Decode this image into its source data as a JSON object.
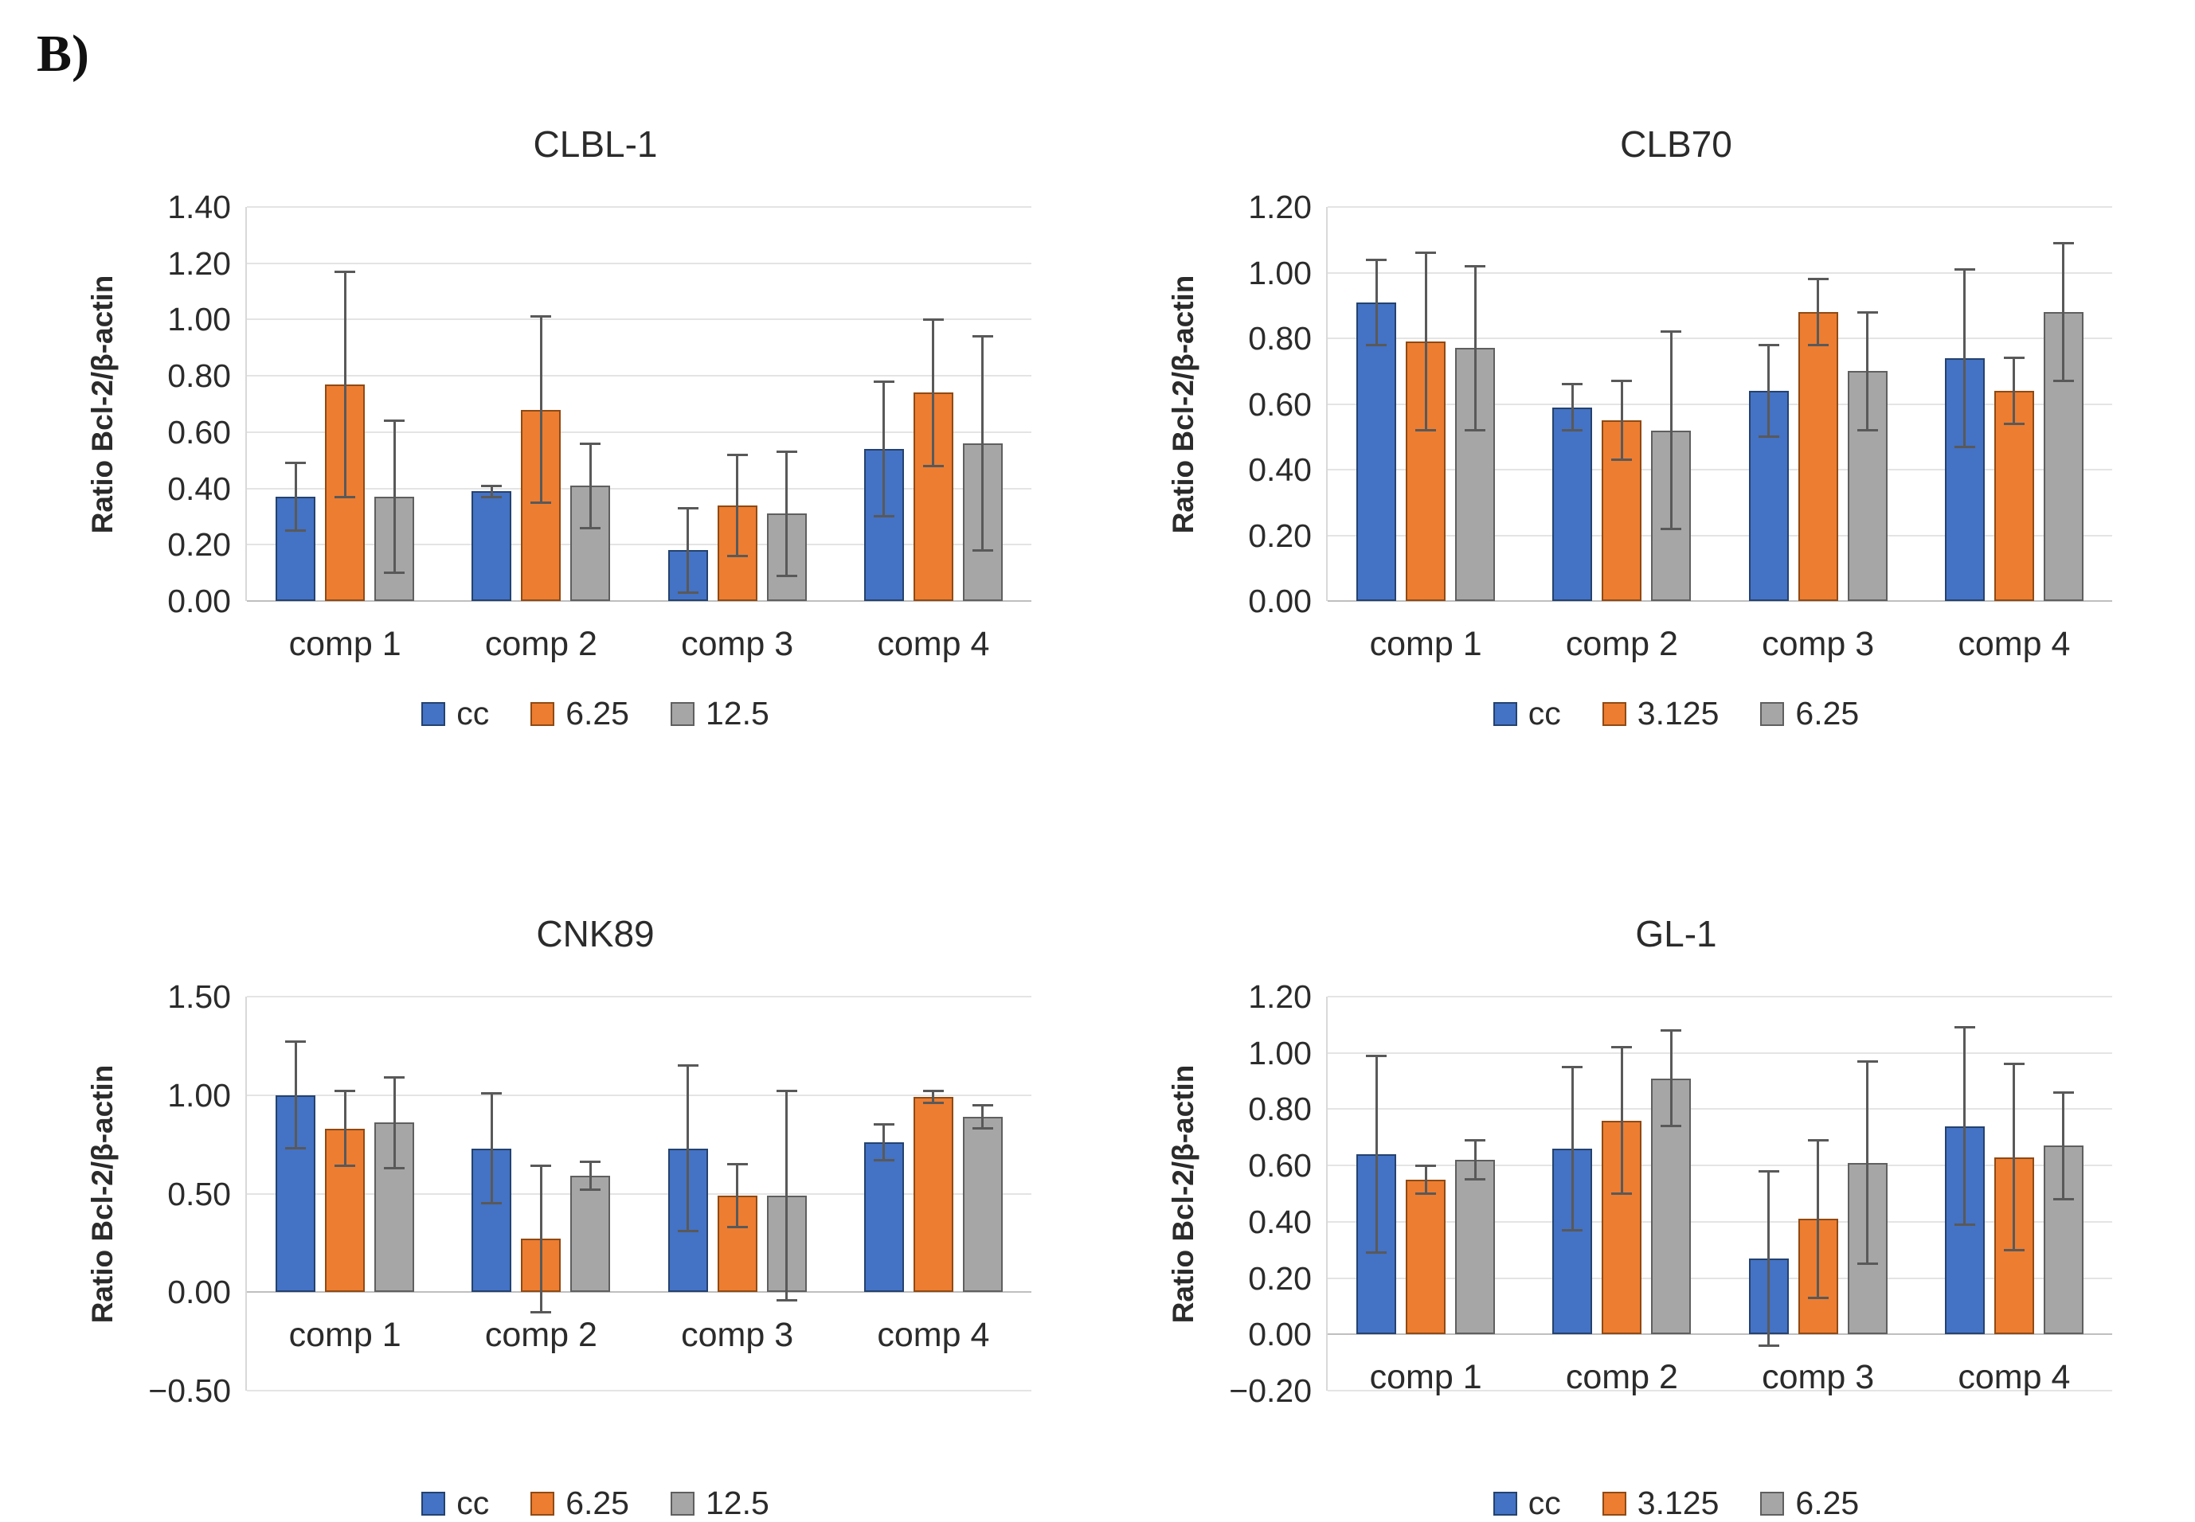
{
  "figure_label": "B)",
  "palette": {
    "series_fill": [
      "#4472C4",
      "#ED7D31",
      "#A6A6A6"
    ],
    "series_border": [
      "#24426E",
      "#8F4A14",
      "#5F5F5F"
    ],
    "error_bar": "#595959",
    "gridline": "#E4E4E4",
    "zero_line": "#BFBFBF",
    "axis_line": "#D9D9D9",
    "text": "#2b2b2b"
  },
  "chart_data": [
    {
      "type": "bar",
      "title": "CLBL-1",
      "ylabel": "Ratio Bcl-2/β-actin",
      "xlabel": "",
      "categories": [
        "comp 1",
        "comp 2",
        "comp 3",
        "comp 4"
      ],
      "series": [
        {
          "name": "cc",
          "values": [
            0.37,
            0.39,
            0.18,
            0.54
          ],
          "errors": [
            0.12,
            0.02,
            0.15,
            0.24
          ]
        },
        {
          "name": "6.25",
          "values": [
            0.77,
            0.68,
            0.34,
            0.74
          ],
          "errors": [
            0.4,
            0.33,
            0.18,
            0.26
          ]
        },
        {
          "name": "12.5",
          "values": [
            0.37,
            0.41,
            0.31,
            0.56
          ],
          "errors": [
            0.27,
            0.15,
            0.22,
            0.38
          ]
        }
      ],
      "ylim": [
        0,
        1.4
      ],
      "yticks": [
        "1.40",
        "1.20",
        "1.00",
        "0.80",
        "0.60",
        "0.40",
        "0.20",
        "0.00"
      ],
      "grid": true,
      "legend_position": "bottom"
    },
    {
      "type": "bar",
      "title": "CLB70",
      "ylabel": "Ratio Bcl-2/β-actin",
      "xlabel": "",
      "categories": [
        "comp 1",
        "comp 2",
        "comp 3",
        "comp 4"
      ],
      "series": [
        {
          "name": "cc",
          "values": [
            0.91,
            0.59,
            0.64,
            0.74
          ],
          "errors": [
            0.13,
            0.07,
            0.14,
            0.27
          ]
        },
        {
          "name": "3.125",
          "values": [
            0.79,
            0.55,
            0.88,
            0.64
          ],
          "errors": [
            0.27,
            0.12,
            0.1,
            0.1
          ]
        },
        {
          "name": "6.25",
          "values": [
            0.77,
            0.52,
            0.7,
            0.88
          ],
          "errors": [
            0.25,
            0.3,
            0.18,
            0.21
          ]
        }
      ],
      "ylim": [
        0,
        1.2
      ],
      "yticks": [
        "1.20",
        "1.00",
        "0.80",
        "0.60",
        "0.40",
        "0.20",
        "0.00"
      ],
      "grid": true,
      "legend_position": "bottom"
    },
    {
      "type": "bar",
      "title": "CNK89",
      "ylabel": "Ratio Bcl-2/β-actin",
      "xlabel": "",
      "categories": [
        "comp 1",
        "comp 2",
        "comp 3",
        "comp 4"
      ],
      "series": [
        {
          "name": "cc",
          "values": [
            1.0,
            0.73,
            0.73,
            0.76
          ],
          "errors": [
            0.27,
            0.28,
            0.42,
            0.09
          ]
        },
        {
          "name": "6.25",
          "values": [
            0.83,
            0.27,
            0.49,
            0.99
          ],
          "errors": [
            0.19,
            0.37,
            0.16,
            0.03
          ]
        },
        {
          "name": "12.5",
          "values": [
            0.86,
            0.59,
            0.49,
            0.89
          ],
          "errors": [
            0.23,
            0.07,
            0.53,
            0.06
          ]
        }
      ],
      "ylim": [
        -0.5,
        1.5
      ],
      "yticks": [
        "1.50",
        "1.00",
        "0.50",
        "0.00",
        "−0.50"
      ],
      "grid": true,
      "legend_position": "bottom"
    },
    {
      "type": "bar",
      "title": "GL-1",
      "ylabel": "Ratio Bcl-2/β-actin",
      "xlabel": "",
      "categories": [
        "comp 1",
        "comp 2",
        "comp 3",
        "comp 4"
      ],
      "series": [
        {
          "name": "cc",
          "values": [
            0.64,
            0.66,
            0.27,
            0.74
          ],
          "errors": [
            0.35,
            0.29,
            0.31,
            0.35
          ]
        },
        {
          "name": "3.125",
          "values": [
            0.55,
            0.76,
            0.41,
            0.63
          ],
          "errors": [
            0.05,
            0.26,
            0.28,
            0.33
          ]
        },
        {
          "name": "6.25",
          "values": [
            0.62,
            0.91,
            0.61,
            0.67
          ],
          "errors": [
            0.07,
            0.17,
            0.36,
            0.19
          ]
        }
      ],
      "ylim": [
        -0.2,
        1.2
      ],
      "yticks": [
        "1.20",
        "1.00",
        "0.80",
        "0.60",
        "0.40",
        "0.20",
        "0.00",
        "−0.20"
      ],
      "grid": true,
      "legend_position": "bottom"
    }
  ]
}
